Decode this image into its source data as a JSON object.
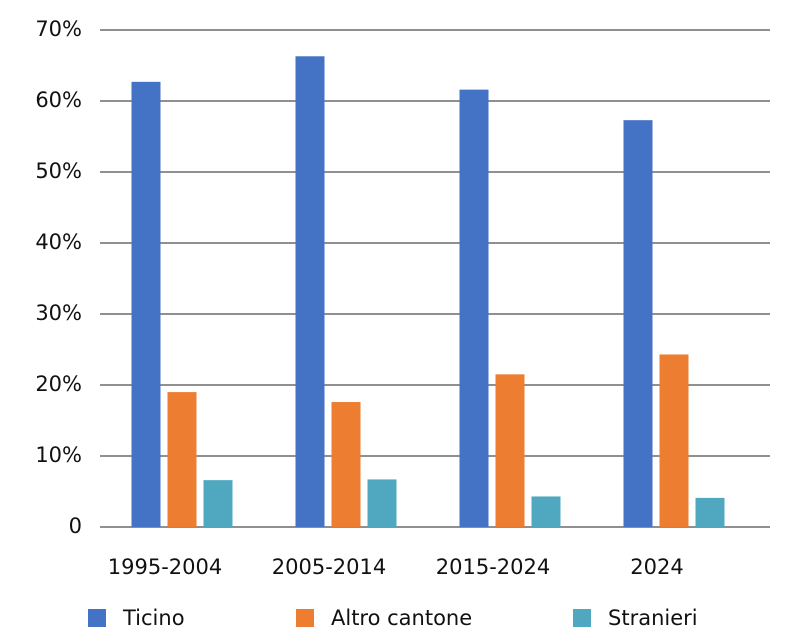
{
  "chart_data": {
    "type": "bar",
    "categories": [
      "1995-2004",
      "2005-2014",
      "2015-2024",
      "2024"
    ],
    "series": [
      {
        "name": "Ticino",
        "color": "#4472c4",
        "values": [
          62.7,
          66.3,
          61.6,
          57.3
        ]
      },
      {
        "name": "Altro cantone",
        "color": "#ed7d31",
        "values": [
          19.0,
          17.6,
          21.5,
          24.3
        ]
      },
      {
        "name": "Stranieri",
        "color": "#4fa8c0",
        "values": [
          6.6,
          6.7,
          4.3,
          4.1
        ]
      }
    ],
    "ylim": [
      0,
      70
    ],
    "yticks": [
      0,
      {
        "value": 10,
        "label": "10%"
      },
      {
        "value": 20,
        "label": "20%"
      },
      {
        "value": 30,
        "label": "30%"
      },
      {
        "value": 40,
        "label": "40%"
      },
      {
        "value": 50,
        "label": "50%"
      },
      {
        "value": 60,
        "label": "60%"
      },
      {
        "value": 70,
        "label": "70%"
      }
    ],
    "grid": true,
    "legend": "bottom"
  }
}
